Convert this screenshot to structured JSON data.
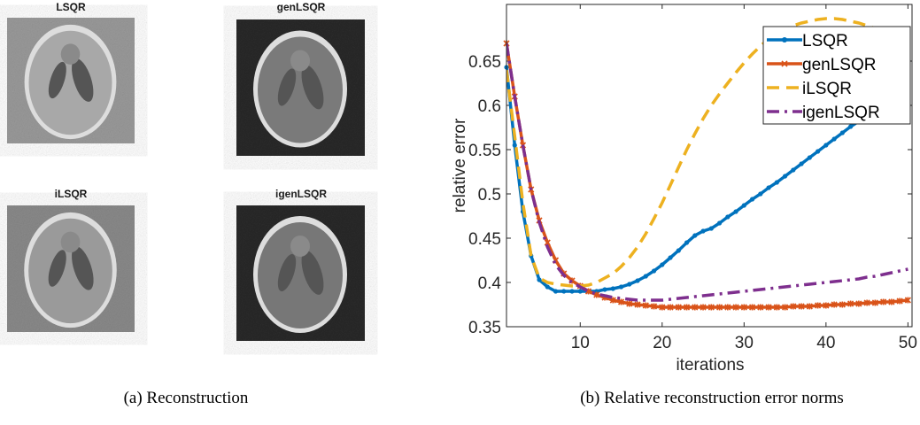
{
  "panels": [
    {
      "title": "LSQR"
    },
    {
      "title": "genLSQR"
    },
    {
      "title": "iLSQR"
    },
    {
      "title": "igenLSQR"
    }
  ],
  "captions": [
    "(a) Reconstruction",
    "(b) Relative reconstruction error norms"
  ],
  "chart_data": {
    "type": "line",
    "xlabel": "iterations",
    "ylabel": "relative error",
    "x": [
      1,
      2,
      3,
      4,
      5,
      6,
      7,
      8,
      9,
      10,
      11,
      12,
      13,
      14,
      15,
      16,
      17,
      18,
      19,
      20,
      21,
      22,
      23,
      24,
      25,
      26,
      27,
      28,
      29,
      30,
      31,
      32,
      33,
      34,
      35,
      36,
      37,
      38,
      39,
      40,
      41,
      42,
      43,
      44,
      45,
      46,
      47,
      48,
      49,
      50
    ],
    "xlim": [
      1,
      50.5
    ],
    "ylim": [
      0.35,
      0.714
    ],
    "xticks": [
      10,
      20,
      30,
      40,
      50
    ],
    "yticks": [
      0.35,
      0.4,
      0.45,
      0.5,
      0.55,
      0.6,
      0.65
    ],
    "legend": "upper right",
    "series": [
      {
        "name": "LSQR",
        "color": "#0072bd",
        "style": "solid",
        "marker": "circle",
        "values": [
          0.643,
          0.555,
          0.48,
          0.43,
          0.403,
          0.395,
          0.39,
          0.39,
          0.39,
          0.39,
          0.39,
          0.39,
          0.392,
          0.393,
          0.395,
          0.398,
          0.402,
          0.407,
          0.413,
          0.42,
          0.428,
          0.436,
          0.445,
          0.453,
          0.458,
          0.461,
          0.467,
          0.474,
          0.48,
          0.487,
          0.494,
          0.5,
          0.507,
          0.513,
          0.52,
          0.527,
          0.534,
          0.541,
          0.548,
          0.555,
          0.562,
          0.569,
          0.576,
          0.582,
          0.588,
          0.594,
          0.598,
          0.602,
          0.605,
          0.608
        ]
      },
      {
        "name": "genLSQR",
        "color": "#d95319",
        "style": "solid",
        "marker": "star",
        "values": [
          0.67,
          0.61,
          0.555,
          0.505,
          0.47,
          0.445,
          0.425,
          0.41,
          0.402,
          0.396,
          0.39,
          0.386,
          0.383,
          0.38,
          0.378,
          0.376,
          0.375,
          0.374,
          0.373,
          0.372,
          0.372,
          0.372,
          0.372,
          0.372,
          0.372,
          0.372,
          0.372,
          0.372,
          0.372,
          0.372,
          0.372,
          0.372,
          0.372,
          0.372,
          0.372,
          0.373,
          0.373,
          0.373,
          0.374,
          0.374,
          0.375,
          0.375,
          0.376,
          0.376,
          0.377,
          0.377,
          0.378,
          0.378,
          0.379,
          0.38
        ]
      },
      {
        "name": "iLSQR",
        "color": "#edb120",
        "style": "dashed",
        "marker": "none",
        "values": [
          0.64,
          0.565,
          0.49,
          0.43,
          0.405,
          0.4,
          0.398,
          0.397,
          0.396,
          0.396,
          0.397,
          0.4,
          0.405,
          0.41,
          0.418,
          0.428,
          0.44,
          0.455,
          0.472,
          0.49,
          0.51,
          0.53,
          0.55,
          0.568,
          0.585,
          0.6,
          0.613,
          0.625,
          0.637,
          0.648,
          0.658,
          0.667,
          0.675,
          0.681,
          0.686,
          0.69,
          0.693,
          0.695,
          0.697,
          0.698,
          0.698,
          0.697,
          0.695,
          0.693,
          0.69,
          0.687,
          0.684,
          0.681,
          0.678,
          0.675
        ]
      },
      {
        "name": "igenLSQR",
        "color": "#7e2f8e",
        "style": "dashdot",
        "marker": "none",
        "values": [
          0.67,
          0.61,
          0.555,
          0.505,
          0.468,
          0.44,
          0.42,
          0.408,
          0.4,
          0.395,
          0.39,
          0.387,
          0.385,
          0.383,
          0.382,
          0.381,
          0.38,
          0.38,
          0.38,
          0.38,
          0.381,
          0.382,
          0.383,
          0.384,
          0.385,
          0.386,
          0.387,
          0.388,
          0.389,
          0.39,
          0.391,
          0.392,
          0.393,
          0.394,
          0.395,
          0.396,
          0.397,
          0.398,
          0.399,
          0.4,
          0.401,
          0.402,
          0.403,
          0.404,
          0.406,
          0.407,
          0.409,
          0.411,
          0.413,
          0.415
        ]
      }
    ]
  }
}
